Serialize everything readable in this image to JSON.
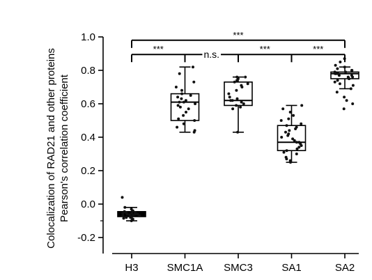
{
  "chart_data": {
    "type": "box",
    "ylabel_line1": "Colocalization of RAD21 and other proteins",
    "ylabel_line2": "Pearson's correlation coefficient",
    "ylim": [
      -0.3,
      1.0
    ],
    "yticks": [
      -0.2,
      0.0,
      0.2,
      0.4,
      0.6,
      0.8,
      1.0
    ],
    "ytick_labels": [
      "-0.2",
      "0.0",
      "0.2",
      "0.4",
      "0.6",
      "0.8",
      "1.0"
    ],
    "categories": [
      "H3",
      "SMC1A",
      "SMC3",
      "SA1",
      "SA2"
    ],
    "boxes": [
      {
        "min": -0.1,
        "q1": -0.075,
        "median": -0.06,
        "q3": -0.045,
        "max": -0.02,
        "points": [
          -0.1,
          -0.09,
          -0.085,
          -0.08,
          -0.08,
          -0.075,
          -0.07,
          -0.07,
          -0.065,
          -0.065,
          -0.06,
          -0.06,
          -0.06,
          -0.055,
          -0.055,
          -0.05,
          -0.05,
          -0.045,
          -0.04,
          -0.03,
          -0.02,
          0.04
        ]
      },
      {
        "min": 0.43,
        "q1": 0.5,
        "median": 0.61,
        "q3": 0.66,
        "max": 0.82,
        "points": [
          0.43,
          0.44,
          0.46,
          0.48,
          0.5,
          0.51,
          0.53,
          0.55,
          0.57,
          0.58,
          0.59,
          0.6,
          0.61,
          0.61,
          0.62,
          0.63,
          0.64,
          0.65,
          0.66,
          0.68,
          0.7,
          0.73,
          0.78,
          0.82
        ]
      },
      {
        "min": 0.43,
        "q1": 0.59,
        "median": 0.62,
        "q3": 0.73,
        "max": 0.76,
        "points": [
          0.43,
          0.57,
          0.58,
          0.59,
          0.6,
          0.61,
          0.62,
          0.62,
          0.63,
          0.64,
          0.66,
          0.68,
          0.7,
          0.71,
          0.72,
          0.73,
          0.74,
          0.75,
          0.76,
          0.76
        ]
      },
      {
        "min": 0.25,
        "q1": 0.32,
        "median": 0.37,
        "q3": 0.47,
        "max": 0.59,
        "points": [
          0.25,
          0.26,
          0.27,
          0.28,
          0.3,
          0.31,
          0.32,
          0.33,
          0.34,
          0.35,
          0.36,
          0.37,
          0.37,
          0.38,
          0.39,
          0.4,
          0.41,
          0.42,
          0.43,
          0.44,
          0.45,
          0.46,
          0.47,
          0.48,
          0.5,
          0.51,
          0.53,
          0.55,
          0.57,
          0.59
        ]
      },
      {
        "min": 0.69,
        "q1": 0.75,
        "median": 0.78,
        "q3": 0.79,
        "max": 0.82,
        "points": [
          0.57,
          0.6,
          0.62,
          0.64,
          0.67,
          0.69,
          0.71,
          0.72,
          0.73,
          0.74,
          0.75,
          0.75,
          0.76,
          0.76,
          0.77,
          0.77,
          0.78,
          0.78,
          0.78,
          0.79,
          0.79,
          0.8,
          0.8,
          0.81,
          0.82,
          0.83,
          0.85,
          0.87
        ]
      }
    ],
    "significance": [
      {
        "from": 0,
        "to": 4,
        "y": 0.98,
        "label": "***"
      },
      {
        "from": 0,
        "to": 1,
        "y": 0.895,
        "label": "***"
      },
      {
        "from": 1,
        "to": 2,
        "y": 0.895,
        "label": "n.s."
      },
      {
        "from": 2,
        "to": 3,
        "y": 0.895,
        "label": "***"
      },
      {
        "from": 3,
        "to": 4,
        "y": 0.895,
        "label": "***"
      }
    ]
  }
}
